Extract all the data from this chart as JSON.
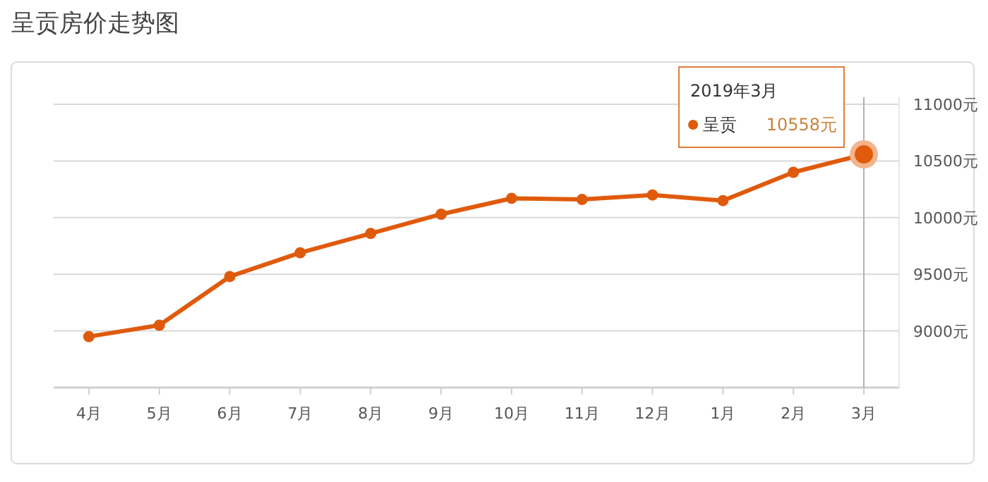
{
  "chart_data": {
    "type": "line",
    "title": "呈贡房价走势图",
    "categories": [
      "4月",
      "5月",
      "6月",
      "7月",
      "8月",
      "9月",
      "10月",
      "11月",
      "12月",
      "1月",
      "2月",
      "3月"
    ],
    "series": [
      {
        "name": "呈贡",
        "color": "#e05a0c",
        "values": [
          8950,
          9050,
          9480,
          9690,
          9860,
          10030,
          10170,
          10160,
          10200,
          10150,
          10400,
          10558
        ],
        "value_labels": [
          null,
          null,
          null,
          null,
          null,
          null,
          null,
          null,
          null,
          null,
          null,
          "10558元"
        ]
      }
    ],
    "ylim": [
      8500,
      11000
    ],
    "yticks": [
      {
        "value": 9000,
        "label": "9000元"
      },
      {
        "value": 9500,
        "label": "9500元"
      },
      {
        "value": 10000,
        "label": "10000元"
      },
      {
        "value": 10500,
        "label": "10500元"
      },
      {
        "value": 11000,
        "label": "11000元"
      }
    ],
    "grid": "y",
    "marker": "circle",
    "ref_lines": [
      {
        "axis": "x",
        "value": "3月",
        "color": "#b0b0b0"
      }
    ],
    "annotations": [
      "2019年3月"
    ]
  }
}
